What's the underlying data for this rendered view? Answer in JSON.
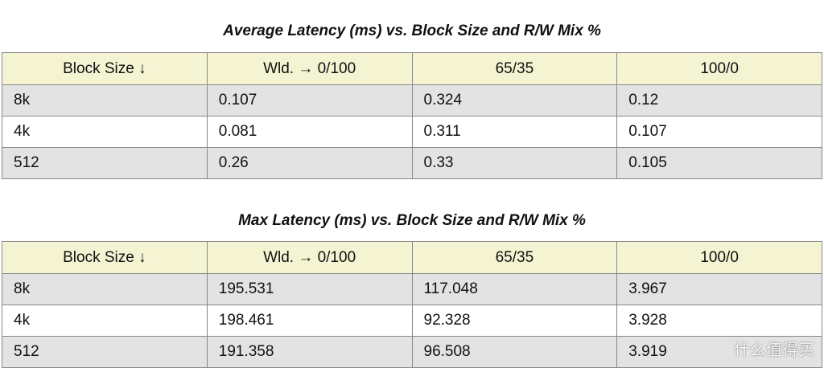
{
  "tables": [
    {
      "title": "Average Latency (ms) vs. Block Size and R/W Mix %",
      "header": [
        "Block Size ↓",
        "Wld. → 0/100",
        "65/35",
        "100/0"
      ],
      "rows": [
        [
          "8k",
          "0.107",
          "0.324",
          "0.12"
        ],
        [
          "4k",
          "0.081",
          "0.311",
          "0.107"
        ],
        [
          "512",
          "0.26",
          "0.33",
          "0.105"
        ]
      ]
    },
    {
      "title": "Max Latency (ms) vs. Block Size and R/W Mix %",
      "header": [
        "Block Size ↓",
        "Wld. → 0/100",
        "65/35",
        "100/0"
      ],
      "rows": [
        [
          "8k",
          "195.531",
          "117.048",
          "3.967"
        ],
        [
          "4k",
          "198.461",
          "92.328",
          "3.928"
        ],
        [
          "512",
          "191.358",
          "96.508",
          "3.919"
        ]
      ]
    }
  ],
  "watermark": "什么值得买"
}
